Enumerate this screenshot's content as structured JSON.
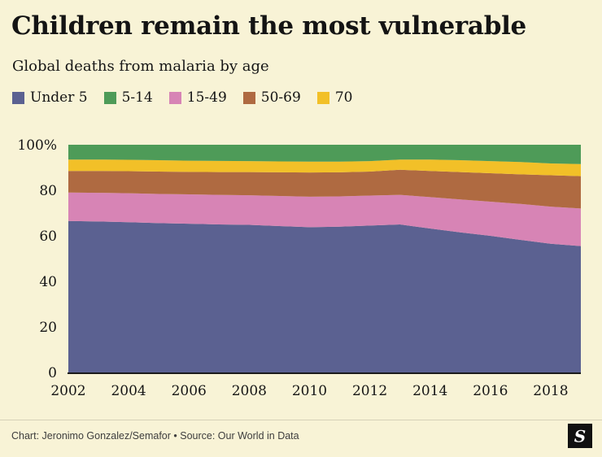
{
  "header": {
    "title": "Children remain the most vulnerable",
    "subtitle": "Global deaths from malaria by age"
  },
  "legend": {
    "items": [
      {
        "label": "Under 5",
        "color": "#5b6191"
      },
      {
        "label": "5-14",
        "color": "#4e9b58"
      },
      {
        "label": "15-49",
        "color": "#d784b5"
      },
      {
        "label": "50-69",
        "color": "#af6a41"
      },
      {
        "label": "70",
        "color": "#f2c028"
      }
    ]
  },
  "footer": {
    "credit": "Chart: Jeronimo Gonzalez/Semafor • Source: Our World in Data",
    "logo_letter": "S"
  },
  "chart_data": {
    "type": "area",
    "stacked": "100%",
    "title": "Children remain the most vulnerable",
    "subtitle": "Global deaths from malaria by age",
    "x": [
      2002,
      2003,
      2004,
      2005,
      2006,
      2007,
      2008,
      2009,
      2010,
      2011,
      2012,
      2013,
      2014,
      2015,
      2016,
      2017,
      2018,
      2019
    ],
    "series": [
      {
        "name": "Under 5",
        "color": "#5b6191",
        "values": [
          66.5,
          66.3,
          66.0,
          65.6,
          65.3,
          65.0,
          64.8,
          64.3,
          63.8,
          64.0,
          64.5,
          65.0,
          63.2,
          61.5,
          60.0,
          58.2,
          56.5,
          55.5
        ]
      },
      {
        "name": "15-49",
        "color": "#d784b5",
        "values": [
          12.5,
          12.6,
          12.7,
          12.8,
          12.9,
          13.0,
          13.0,
          13.2,
          13.4,
          13.3,
          13.2,
          13.0,
          13.8,
          14.5,
          15.0,
          15.8,
          16.3,
          16.5
        ]
      },
      {
        "name": "50-69",
        "color": "#af6a41",
        "values": [
          9.5,
          9.6,
          9.7,
          9.8,
          9.9,
          10.0,
          10.2,
          10.4,
          10.6,
          10.6,
          10.5,
          11.0,
          11.5,
          12.0,
          12.5,
          13.0,
          13.8,
          14.2
        ]
      },
      {
        "name": "70",
        "color": "#f2c028",
        "values": [
          5.0,
          5.0,
          5.0,
          5.0,
          4.9,
          4.9,
          4.8,
          4.8,
          4.8,
          4.7,
          4.6,
          4.5,
          5.0,
          5.2,
          5.3,
          5.4,
          5.2,
          5.3
        ]
      },
      {
        "name": "5-14",
        "color": "#4e9b58",
        "values": [
          6.5,
          6.5,
          6.6,
          6.8,
          7.0,
          7.1,
          7.2,
          7.3,
          7.4,
          7.4,
          7.2,
          6.5,
          6.5,
          6.8,
          7.2,
          7.6,
          8.2,
          8.5
        ]
      }
    ],
    "ylim": [
      0,
      100
    ],
    "yticks": [
      100,
      80,
      60,
      40,
      20,
      0
    ],
    "ytick_labels": [
      "100%",
      "80",
      "60",
      "40",
      "20",
      "0"
    ],
    "xticks": [
      2002,
      2004,
      2006,
      2008,
      2010,
      2012,
      2014,
      2016,
      2018
    ],
    "grid": "off",
    "legend_position": "top",
    "note": "100% stacked area; stack order bottom-to-top: Under 5, 15-49, 50-69, 70, 5-14"
  }
}
